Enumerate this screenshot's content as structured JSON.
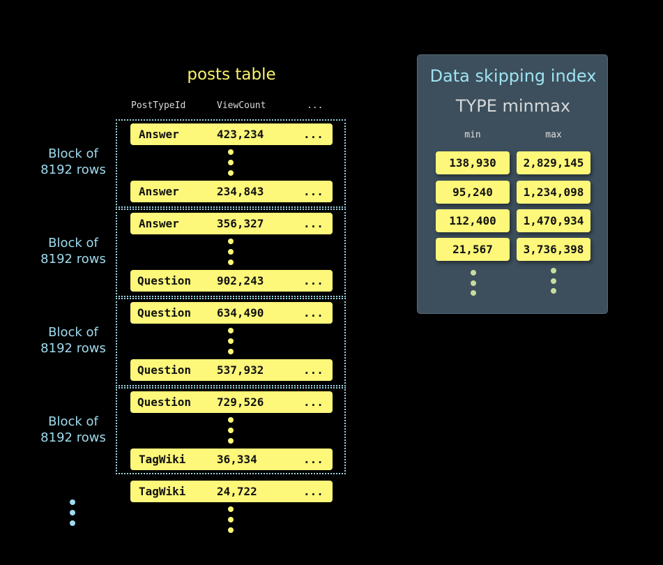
{
  "table": {
    "title": "posts table",
    "headers": [
      "PostTypeId",
      "ViewCount",
      "..."
    ],
    "rows": [
      [
        "Answer",
        "423,234",
        "..."
      ],
      [
        "Answer",
        "234,843",
        "..."
      ],
      [
        "Answer",
        "356,327",
        "..."
      ],
      [
        "Question",
        "902,243",
        "..."
      ],
      [
        "Question",
        "634,490",
        "..."
      ],
      [
        "Question",
        "537,932",
        "..."
      ],
      [
        "Question",
        "729,526",
        "..."
      ],
      [
        "TagWiki",
        "36,334",
        "..."
      ],
      [
        "TagWiki",
        "24,722",
        "..."
      ]
    ],
    "block_label_1": "Block of",
    "block_label_2": "8192 rows"
  },
  "index": {
    "title": "Data skipping index",
    "subtitle": "TYPE minmax",
    "min_label": "min",
    "max_label": "max",
    "rows": [
      [
        "138,930",
        "2,829,145"
      ],
      [
        "95,240",
        "1,234,098"
      ],
      [
        "112,400",
        "1,470,934"
      ],
      [
        "21,567",
        "3,736,398"
      ]
    ]
  },
  "colors": {
    "row": "#fdf77a",
    "block_border": "#9fd8e6",
    "panel": "#3d4f5c"
  }
}
